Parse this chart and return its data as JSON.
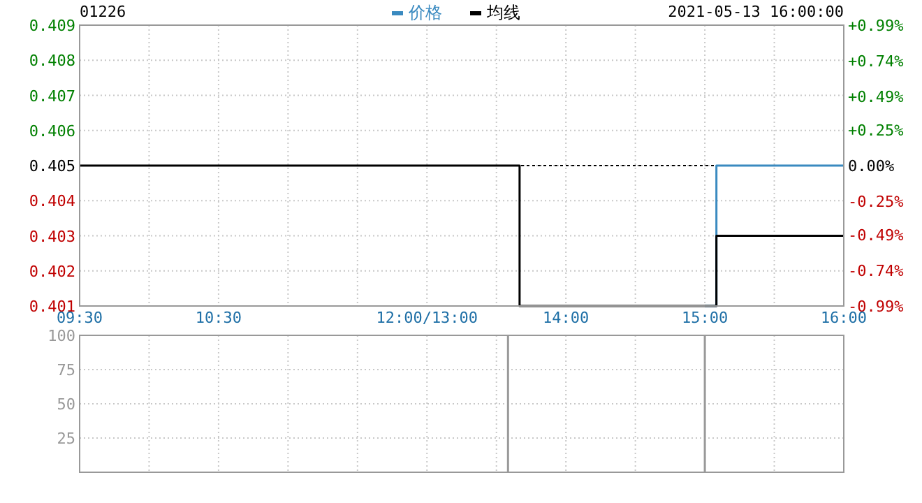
{
  "chart_data": [
    {
      "type": "step",
      "title": "01226",
      "annotations": [
        "2021-05-13 16:00:00"
      ],
      "legend": "top",
      "grid": true,
      "categories": [
        "09:30",
        null,
        null,
        null,
        null,
        null,
        null,
        null,
        null,
        null,
        null,
        null,
        "10:30",
        null,
        null,
        null,
        null,
        null,
        null,
        null,
        null,
        null,
        null,
        null,
        null,
        null,
        null,
        null,
        null,
        null,
        "12:00/13:00",
        null,
        null,
        null,
        null,
        null,
        null,
        null,
        null,
        null,
        null,
        null,
        "14:00",
        null,
        null,
        null,
        null,
        null,
        null,
        null,
        null,
        null,
        null,
        null,
        "15:00",
        null,
        null,
        null,
        null,
        null,
        null,
        null,
        null,
        null,
        null,
        null,
        "16:00"
      ],
      "ylim": [
        0.401,
        0.409
      ],
      "yticks": [
        0.401,
        0.402,
        0.403,
        0.404,
        0.405,
        0.406,
        0.407,
        0.408,
        0.409
      ],
      "y2lim": [
        -0.99,
        0.99
      ],
      "y2ticks": [
        {
          "value": -0.99,
          "label": "-0.99%"
        },
        {
          "value": -0.74,
          "label": "-0.74%"
        },
        {
          "value": -0.49,
          "label": "-0.49%"
        },
        {
          "value": -0.25,
          "label": "-0.25%"
        },
        {
          "value": 0,
          "label": "0.00%"
        },
        {
          "value": 0.25,
          "label": "+0.25%"
        },
        {
          "value": 0.49,
          "label": "+0.49%"
        },
        {
          "value": 0.74,
          "label": "+0.74%"
        },
        {
          "value": 0.99,
          "label": "+0.99%"
        }
      ],
      "ref_lines": [
        {
          "axis": "y",
          "value": 0.405,
          "color": "#000000",
          "line_style": "dotted"
        }
      ],
      "series": [
        {
          "name": "价格",
          "color": "#3a8ac0",
          "values": [
            null,
            null,
            null,
            null,
            null,
            null,
            null,
            null,
            null,
            null,
            null,
            null,
            null,
            null,
            null,
            null,
            null,
            null,
            null,
            null,
            null,
            null,
            null,
            null,
            null,
            null,
            null,
            null,
            null,
            null,
            null,
            null,
            null,
            null,
            null,
            null,
            null,
            null,
            null,
            null,
            null,
            null,
            null,
            null,
            null,
            null,
            null,
            null,
            null,
            null,
            null,
            null,
            null,
            null,
            0.401,
            0.405,
            0.405,
            0.405,
            0.405,
            0.405,
            0.405,
            0.405,
            0.405,
            0.405,
            0.405,
            0.405,
            0.405
          ]
        },
        {
          "name": "均线",
          "color": "#000000",
          "values": [
            0.405,
            0.405,
            0.405,
            0.405,
            0.405,
            0.405,
            0.405,
            0.405,
            0.405,
            0.405,
            0.405,
            0.405,
            0.405,
            0.405,
            0.405,
            0.405,
            0.405,
            0.405,
            0.405,
            0.405,
            0.405,
            0.405,
            0.405,
            0.405,
            0.405,
            0.405,
            0.405,
            0.405,
            0.405,
            0.405,
            0.405,
            0.405,
            0.405,
            0.405,
            0.405,
            0.405,
            0.405,
            0.405,
            0.401,
            0.401,
            0.401,
            0.401,
            0.401,
            0.401,
            0.401,
            0.401,
            0.401,
            0.401,
            0.401,
            0.401,
            0.401,
            0.401,
            0.401,
            0.401,
            0.401,
            0.403,
            0.403,
            0.403,
            0.403,
            0.403,
            0.403,
            0.403,
            0.403,
            0.403,
            0.403,
            0.403,
            0.403
          ]
        }
      ]
    },
    {
      "type": "bar",
      "grid": true,
      "categories": [
        null,
        null,
        null,
        null,
        null,
        null,
        null,
        null,
        null,
        null,
        null,
        null,
        null,
        null,
        null,
        null,
        null,
        null,
        null,
        null,
        null,
        null,
        null,
        null,
        null,
        null,
        null,
        null,
        null,
        null,
        null,
        null,
        null,
        null,
        null,
        null,
        null,
        null,
        null,
        null,
        null,
        null,
        null,
        null,
        null,
        null,
        null,
        null,
        null,
        null,
        null,
        null,
        null,
        null,
        null,
        null,
        null,
        null,
        null,
        null,
        null,
        null,
        null,
        null,
        null,
        null,
        null
      ],
      "ylim": [
        0,
        100
      ],
      "yticks": [
        25,
        50,
        75,
        100
      ],
      "values": [
        0,
        0,
        0,
        0,
        0,
        0,
        0,
        0,
        0,
        0,
        0,
        0,
        0,
        0,
        0,
        0,
        0,
        0,
        0,
        0,
        0,
        0,
        0,
        0,
        0,
        0,
        0,
        0,
        0,
        0,
        0,
        0,
        0,
        0,
        0,
        0,
        0,
        100,
        0,
        0,
        0,
        0,
        0,
        0,
        0,
        0,
        0,
        0,
        0,
        0,
        0,
        0,
        0,
        0,
        100,
        0,
        0,
        0,
        0,
        0,
        0,
        0,
        0,
        0,
        0,
        0,
        0
      ],
      "color": "#999999"
    }
  ]
}
